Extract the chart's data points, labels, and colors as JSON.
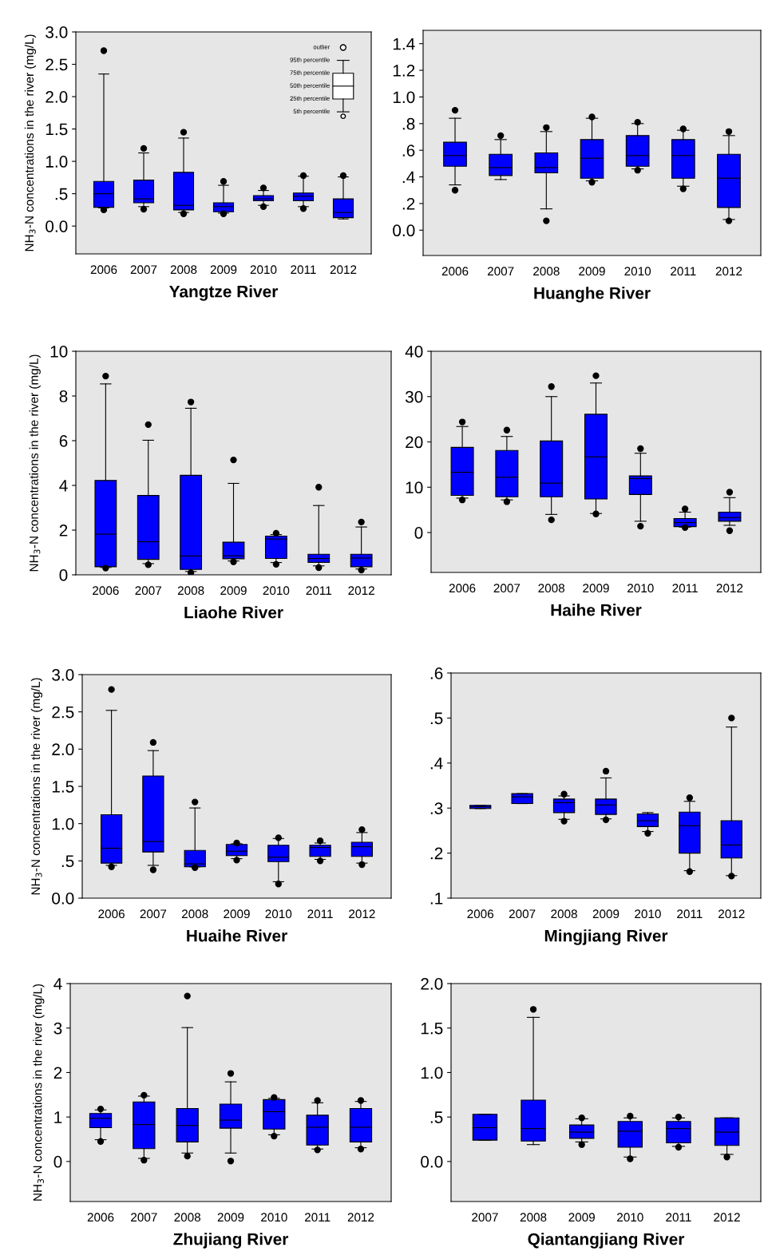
{
  "chart_data": [
    {
      "type": "box",
      "xlabel": "Yangtze River",
      "ylabel": "NH$_{3}$-N concentrations in the river (mg/L)",
      "categories": [
        "2006",
        "2007",
        "2008",
        "2009",
        "2010",
        "2011",
        "2012"
      ],
      "color": "#0000ff",
      "ylim": [
        -0.43,
        3.0
      ],
      "yticks": [
        {
          "value": 0,
          "label": "0.0"
        },
        {
          "value": 0.5,
          "label": ".5"
        },
        {
          "value": 1,
          "label": "1.0"
        },
        {
          "value": 1.5,
          "label": "1.5"
        },
        {
          "value": 2,
          "label": "2.0"
        },
        {
          "value": 2.5,
          "label": "2.5"
        },
        {
          "value": 3,
          "label": "3.0"
        }
      ],
      "annotations": [
        "outlier",
        "95th percentile",
        "75th percentile",
        "50th percentile",
        "25th percentile",
        "5th percentile"
      ],
      "boxes": [
        {
          "low": 0.28,
          "q1": 0.29,
          "median": 0.5,
          "q3": 0.69,
          "high": 2.35,
          "outliers": [
            2.71,
            0.25
          ]
        },
        {
          "low": 0.3,
          "q1": 0.36,
          "median": 0.42,
          "q3": 0.71,
          "high": 1.13,
          "outliers": [
            1.2,
            0.26
          ]
        },
        {
          "low": 0.21,
          "q1": 0.25,
          "median": 0.32,
          "q3": 0.83,
          "high": 1.36,
          "outliers": [
            1.45,
            0.19
          ]
        },
        {
          "low": 0.2,
          "q1": 0.22,
          "median": 0.3,
          "q3": 0.36,
          "high": 0.63,
          "outliers": [
            0.69,
            0.19
          ]
        },
        {
          "low": 0.32,
          "q1": 0.39,
          "median": 0.42,
          "q3": 0.47,
          "high": 0.55,
          "outliers": [
            0.59,
            0.3
          ]
        },
        {
          "low": 0.3,
          "q1": 0.39,
          "median": 0.46,
          "q3": 0.51,
          "high": 0.77,
          "outliers": [
            0.78,
            0.27
          ]
        },
        {
          "low": 0.11,
          "q1": 0.13,
          "median": 0.21,
          "q3": 0.42,
          "high": 0.76,
          "outliers": [
            0.78
          ]
        }
      ]
    },
    {
      "type": "box",
      "xlabel": "Huanghe River",
      "categories": [
        "2006",
        "2007",
        "2008",
        "2009",
        "2010",
        "2011",
        "2012"
      ],
      "color": "#0000ff",
      "ylim": [
        -0.19,
        1.5
      ],
      "yticks": [
        {
          "value": 0,
          "label": "0.0"
        },
        {
          "value": 0.2,
          "label": ".2"
        },
        {
          "value": 0.4,
          "label": ".4"
        },
        {
          "value": 0.6,
          "label": ".6"
        },
        {
          "value": 0.8,
          "label": ".8"
        },
        {
          "value": 1.0,
          "label": "1.0"
        },
        {
          "value": 1.2,
          "label": "1.2"
        },
        {
          "value": 1.4,
          "label": "1.4"
        }
      ],
      "boxes": [
        {
          "low": 0.34,
          "q1": 0.48,
          "median": 0.56,
          "q3": 0.66,
          "high": 0.84,
          "outliers": [
            0.9,
            0.3
          ]
        },
        {
          "low": 0.38,
          "q1": 0.41,
          "median": 0.47,
          "q3": 0.57,
          "high": 0.68,
          "outliers": [
            0.71
          ]
        },
        {
          "low": 0.16,
          "q1": 0.43,
          "median": 0.47,
          "q3": 0.58,
          "high": 0.74,
          "outliers": [
            0.77,
            0.07
          ]
        },
        {
          "low": 0.37,
          "q1": 0.39,
          "median": 0.54,
          "q3": 0.68,
          "high": 0.84,
          "outliers": [
            0.85,
            0.36
          ]
        },
        {
          "low": 0.46,
          "q1": 0.48,
          "median": 0.56,
          "q3": 0.71,
          "high": 0.8,
          "outliers": [
            0.81,
            0.45
          ]
        },
        {
          "low": 0.33,
          "q1": 0.39,
          "median": 0.56,
          "q3": 0.68,
          "high": 0.75,
          "outliers": [
            0.76,
            0.31
          ]
        },
        {
          "low": 0.08,
          "q1": 0.17,
          "median": 0.39,
          "q3": 0.57,
          "high": 0.71,
          "outliers": [
            0.74,
            0.07
          ]
        }
      ]
    },
    {
      "type": "box",
      "xlabel": "Liaohe River",
      "ylabel": "NH$_{3}$-N concentrations in the river (mg/L)",
      "categories": [
        "2006",
        "2007",
        "2008",
        "2009",
        "2010",
        "2011",
        "2012"
      ],
      "color": "#0000ff",
      "ylim": [
        0,
        10
      ],
      "yticks": [
        0,
        2,
        4,
        6,
        8,
        10
      ],
      "boxes": [
        {
          "low": 0.33,
          "q1": 0.36,
          "median": 1.82,
          "q3": 4.22,
          "high": 8.54,
          "outliers": [
            8.89,
            0.3
          ]
        },
        {
          "low": 0.5,
          "q1": 0.69,
          "median": 1.48,
          "q3": 3.55,
          "high": 6.02,
          "outliers": [
            6.72,
            0.45
          ]
        },
        {
          "low": 0.15,
          "q1": 0.24,
          "median": 0.84,
          "q3": 4.45,
          "high": 7.45,
          "outliers": [
            7.73,
            0.09
          ]
        },
        {
          "low": 0.62,
          "q1": 0.72,
          "median": 0.85,
          "q3": 1.46,
          "high": 4.09,
          "outliers": [
            5.14,
            0.58
          ]
        },
        {
          "low": 0.55,
          "q1": 0.73,
          "median": 1.6,
          "q3": 1.73,
          "high": 1.8,
          "outliers": [
            1.86,
            0.47
          ]
        },
        {
          "low": 0.4,
          "q1": 0.56,
          "median": 0.73,
          "q3": 0.92,
          "high": 3.1,
          "outliers": [
            3.92,
            0.32
          ]
        },
        {
          "low": 0.26,
          "q1": 0.36,
          "median": 0.75,
          "q3": 0.92,
          "high": 2.14,
          "outliers": [
            2.36,
            0.21
          ]
        }
      ]
    },
    {
      "type": "box",
      "xlabel": "Haihe River",
      "categories": [
        "2006",
        "2007",
        "2008",
        "2009",
        "2010",
        "2011",
        "2012"
      ],
      "color": "#0000ff",
      "ylim": [
        -8.8,
        40
      ],
      "yticks": [
        0,
        10,
        20,
        30,
        40
      ],
      "boxes": [
        {
          "low": 7.6,
          "q1": 8.2,
          "median": 13.3,
          "q3": 18.8,
          "high": 23.4,
          "outliers": [
            24.4,
            7.2
          ]
        },
        {
          "low": 7.2,
          "q1": 7.9,
          "median": 12.2,
          "q3": 18.1,
          "high": 21.2,
          "outliers": [
            22.6,
            6.8
          ]
        },
        {
          "low": 4.0,
          "q1": 7.9,
          "median": 10.9,
          "q3": 20.2,
          "high": 30.0,
          "outliers": [
            32.2,
            2.8
          ]
        },
        {
          "low": 4.2,
          "q1": 7.4,
          "median": 16.7,
          "q3": 26.1,
          "high": 33.0,
          "outliers": [
            34.6,
            4.1
          ]
        },
        {
          "low": 2.5,
          "q1": 8.4,
          "median": 11.9,
          "q3": 12.5,
          "high": 17.5,
          "outliers": [
            18.5,
            1.4
          ]
        },
        {
          "low": 1.2,
          "q1": 1.3,
          "median": 2.2,
          "q3": 3.1,
          "high": 4.5,
          "outliers": [
            5.2,
            1.1
          ]
        },
        {
          "low": 1.6,
          "q1": 2.5,
          "median": 3.3,
          "q3": 4.5,
          "high": 7.7,
          "outliers": [
            8.9,
            0.4
          ]
        }
      ]
    },
    {
      "type": "box",
      "xlabel": "Huaihe River",
      "ylabel": "NH$_{3}$-N concentrations in the river (mg/L)",
      "categories": [
        "2006",
        "2007",
        "2008",
        "2009",
        "2010",
        "2011",
        "2012"
      ],
      "color": "#0000ff",
      "ylim": [
        0,
        3.0
      ],
      "yticks": [
        {
          "value": 0,
          "label": "0.0"
        },
        {
          "value": 0.5,
          "label": ".5"
        },
        {
          "value": 1,
          "label": "1.0"
        },
        {
          "value": 1.5,
          "label": "1.5"
        },
        {
          "value": 2,
          "label": "2.0"
        },
        {
          "value": 2.5,
          "label": "2.5"
        },
        {
          "value": 3,
          "label": "3.0"
        }
      ],
      "boxes": [
        {
          "low": 0.44,
          "q1": 0.47,
          "median": 0.67,
          "q3": 1.12,
          "high": 2.52,
          "outliers": [
            2.8,
            0.42
          ]
        },
        {
          "low": 0.44,
          "q1": 0.62,
          "median": 0.76,
          "q3": 1.64,
          "high": 1.98,
          "outliers": [
            2.09,
            0.38
          ]
        },
        {
          "low": 0.42,
          "q1": 0.42,
          "median": 0.46,
          "q3": 0.64,
          "high": 1.21,
          "outliers": [
            1.29,
            0.41
          ]
        },
        {
          "low": 0.53,
          "q1": 0.57,
          "median": 0.63,
          "q3": 0.72,
          "high": 0.73,
          "outliers": [
            0.74,
            0.51
          ]
        },
        {
          "low": 0.22,
          "q1": 0.49,
          "median": 0.55,
          "q3": 0.71,
          "high": 0.8,
          "outliers": [
            0.81,
            0.19
          ]
        },
        {
          "low": 0.52,
          "q1": 0.56,
          "median": 0.68,
          "q3": 0.71,
          "high": 0.74,
          "outliers": [
            0.77,
            0.5
          ]
        },
        {
          "low": 0.47,
          "q1": 0.56,
          "median": 0.69,
          "q3": 0.75,
          "high": 0.88,
          "outliers": [
            0.92,
            0.45
          ]
        }
      ]
    },
    {
      "type": "box",
      "xlabel": "Mingjiang River",
      "categories": [
        "2006",
        "2007",
        "2008",
        "2009",
        "2010",
        "2011",
        "2012"
      ],
      "color": "#0000ff",
      "ylim": [
        0.1,
        0.6
      ],
      "yticks": [
        {
          "value": 0.1,
          "label": ".1"
        },
        {
          "value": 0.2,
          "label": ".2"
        },
        {
          "value": 0.3,
          "label": ".3"
        },
        {
          "value": 0.4,
          "label": ".4"
        },
        {
          "value": 0.5,
          "label": ".5"
        },
        {
          "value": 0.6,
          "label": ".6"
        }
      ],
      "boxes": [
        {
          "low": 0.299,
          "q1": 0.299,
          "median": 0.303,
          "q3": 0.306,
          "high": 0.306
        },
        {
          "low": 0.31,
          "q1": 0.31,
          "median": 0.325,
          "q3": 0.332,
          "high": 0.332
        },
        {
          "low": 0.275,
          "q1": 0.29,
          "median": 0.312,
          "q3": 0.32,
          "high": 0.327,
          "outliers": [
            0.331,
            0.271
          ]
        },
        {
          "low": 0.276,
          "q1": 0.286,
          "median": 0.307,
          "q3": 0.32,
          "high": 0.367,
          "outliers": [
            0.382,
            0.274
          ]
        },
        {
          "low": 0.248,
          "q1": 0.259,
          "median": 0.272,
          "q3": 0.287,
          "high": 0.29,
          "outliers": [
            0.244
          ]
        },
        {
          "low": 0.161,
          "q1": 0.2,
          "median": 0.261,
          "q3": 0.291,
          "high": 0.315,
          "outliers": [
            0.323,
            0.159
          ]
        },
        {
          "low": 0.15,
          "q1": 0.189,
          "median": 0.218,
          "q3": 0.272,
          "high": 0.48,
          "outliers": [
            0.5,
            0.149
          ]
        }
      ]
    },
    {
      "type": "box",
      "xlabel": "Zhujiang River",
      "ylabel": "NH$_{3}$-N concentrations in the river (mg/L)",
      "categories": [
        "2006",
        "2007",
        "2008",
        "2009",
        "2010",
        "2011",
        "2012"
      ],
      "color": "#0000ff",
      "ylim": [
        -0.9,
        4
      ],
      "yticks": [
        0,
        1,
        2,
        3,
        4
      ],
      "boxes": [
        {
          "low": 0.49,
          "q1": 0.76,
          "median": 0.97,
          "q3": 1.08,
          "high": 1.16,
          "outliers": [
            1.18,
            0.45
          ]
        },
        {
          "low": 0.07,
          "q1": 0.29,
          "median": 0.83,
          "q3": 1.34,
          "high": 1.47,
          "outliers": [
            1.49,
            0.03
          ]
        },
        {
          "low": 0.19,
          "q1": 0.44,
          "median": 0.81,
          "q3": 1.19,
          "high": 3.01,
          "outliers": [
            3.72,
            0.12
          ]
        },
        {
          "low": 0.19,
          "q1": 0.75,
          "median": 0.93,
          "q3": 1.29,
          "high": 1.79,
          "outliers": [
            1.98,
            0.01
          ]
        },
        {
          "low": 0.6,
          "q1": 0.73,
          "median": 1.12,
          "q3": 1.39,
          "high": 1.42,
          "outliers": [
            1.44,
            0.57
          ]
        },
        {
          "low": 0.28,
          "q1": 0.37,
          "median": 0.77,
          "q3": 1.04,
          "high": 1.32,
          "outliers": [
            1.37,
            0.26
          ]
        },
        {
          "low": 0.31,
          "q1": 0.44,
          "median": 0.77,
          "q3": 1.19,
          "high": 1.35,
          "outliers": [
            1.37,
            0.28
          ]
        }
      ]
    },
    {
      "type": "box",
      "xlabel": "Qiantangjiang River",
      "categories": [
        "2007",
        "2008",
        "2009",
        "2010",
        "2011",
        "2012"
      ],
      "color": "#0000ff",
      "ylim": [
        -0.45,
        2.0
      ],
      "yticks": [
        {
          "value": 0,
          "label": "0.0"
        },
        {
          "value": 0.5,
          "label": ".5"
        },
        {
          "value": 1,
          "label": "1.0"
        },
        {
          "value": 1.5,
          "label": "1.5"
        },
        {
          "value": 2,
          "label": "2.0"
        }
      ],
      "boxes": [
        {
          "low": 0.24,
          "q1": 0.24,
          "median": 0.38,
          "q3": 0.53,
          "high": 0.53
        },
        {
          "low": 0.19,
          "q1": 0.23,
          "median": 0.37,
          "q3": 0.69,
          "high": 1.62,
          "outliers": [
            1.71
          ]
        },
        {
          "low": 0.22,
          "q1": 0.26,
          "median": 0.33,
          "q3": 0.41,
          "high": 0.48,
          "outliers": [
            0.49,
            0.19
          ]
        },
        {
          "low": 0.05,
          "q1": 0.16,
          "median": 0.34,
          "q3": 0.45,
          "high": 0.49,
          "outliers": [
            0.51,
            0.03
          ]
        },
        {
          "low": 0.17,
          "q1": 0.21,
          "median": 0.37,
          "q3": 0.45,
          "high": 0.49,
          "outliers": [
            0.5,
            0.16
          ]
        },
        {
          "low": 0.08,
          "q1": 0.18,
          "median": 0.33,
          "q3": 0.49,
          "high": 0.49,
          "outliers": [
            0.05
          ]
        }
      ]
    }
  ]
}
